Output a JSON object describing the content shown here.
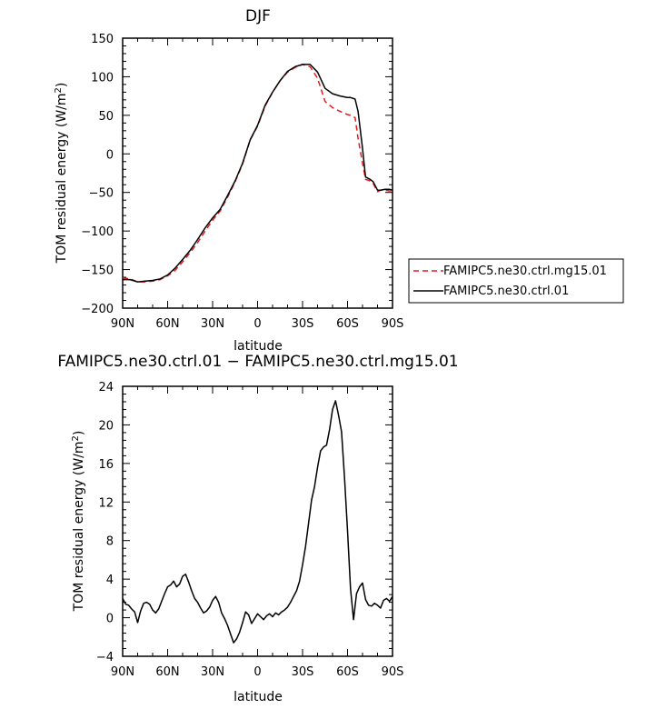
{
  "chart_data": [
    {
      "type": "line",
      "title": "DJF",
      "xlabel": "latitude",
      "ylabel": "TOM residual energy (W/m",
      "ylabel_sup": "2",
      "ylabel_close": ")",
      "xlim": [
        -90,
        90
      ],
      "ylim": [
        -200,
        150
      ],
      "x_ticks": [
        -90,
        -60,
        -30,
        0,
        30,
        60,
        90
      ],
      "x_tick_labels": [
        "90N",
        "60N",
        "30N",
        "0",
        "30S",
        "60S",
        "90S"
      ],
      "y_ticks": [
        -200,
        -150,
        -100,
        -50,
        0,
        50,
        100,
        150
      ],
      "y_tick_labels": [
        "−200",
        "−150",
        "−100",
        "−50",
        "0",
        "50",
        "100",
        "150"
      ],
      "grid": false,
      "legend_position": "right",
      "series": [
        {
          "name": "FAMIPC5.ne30.ctrl.mg15.01",
          "color": "#e8191e",
          "dash": "dashed",
          "x": [
            -90,
            -85,
            -80,
            -75,
            -70,
            -65,
            -60,
            -55,
            -50,
            -45,
            -40,
            -35,
            -30,
            -25,
            -20,
            -15,
            -10,
            -5,
            0,
            5,
            10,
            15,
            20,
            25,
            30,
            35,
            40,
            45,
            50,
            55,
            60,
            62,
            65,
            67,
            70,
            72,
            75,
            77,
            80,
            82,
            85,
            88,
            90
          ],
          "y": [
            -161,
            -162,
            -166,
            -166,
            -165,
            -163,
            -158,
            -151,
            -140,
            -128,
            -115,
            -100,
            -86,
            -74,
            -56,
            -36,
            -13,
            18,
            36,
            62,
            80,
            95,
            106,
            112,
            116,
            113,
            98,
            68,
            60,
            55,
            51,
            50,
            47,
            20,
            -12,
            -33,
            -35,
            -38,
            -49,
            -47,
            -47,
            -48,
            -48
          ]
        },
        {
          "name": "FAMIPC5.ne30.ctrl.01",
          "color": "#000000",
          "dash": "solid",
          "x": [
            -90,
            -85,
            -80,
            -75,
            -70,
            -65,
            -60,
            -55,
            -50,
            -45,
            -40,
            -35,
            -30,
            -25,
            -20,
            -15,
            -10,
            -5,
            0,
            5,
            10,
            15,
            20,
            25,
            30,
            35,
            40,
            45,
            50,
            55,
            60,
            62,
            65,
            67,
            70,
            72,
            75,
            77,
            80,
            82,
            85,
            88,
            90
          ],
          "y": [
            -163,
            -163,
            -166,
            -165,
            -164,
            -162,
            -157,
            -148,
            -137,
            -125,
            -111,
            -96,
            -83,
            -72,
            -54,
            -35,
            -12,
            18,
            37,
            63,
            80,
            95,
            107,
            113,
            116,
            116,
            106,
            85,
            78,
            75,
            73,
            73,
            71,
            55,
            7,
            -30,
            -33,
            -36,
            -47,
            -47,
            -46,
            -46,
            -47
          ]
        }
      ]
    },
    {
      "type": "line",
      "title": "FAMIPC5.ne30.ctrl.01 − FAMIPC5.ne30.ctrl.mg15.01",
      "xlabel": "latitude",
      "ylabel": "TOM residual energy (W/m",
      "ylabel_sup": "2",
      "ylabel_close": ")",
      "xlim": [
        -90,
        90
      ],
      "ylim": [
        -4,
        24
      ],
      "x_ticks": [
        -90,
        -60,
        -30,
        0,
        30,
        60,
        90
      ],
      "x_tick_labels": [
        "90N",
        "60N",
        "30N",
        "0",
        "30S",
        "60S",
        "90S"
      ],
      "y_ticks": [
        -4,
        0,
        4,
        8,
        12,
        16,
        20,
        24
      ],
      "y_tick_labels": [
        "−4",
        "0",
        "4",
        "8",
        "12",
        "16",
        "20",
        "24"
      ],
      "grid": false,
      "series": [
        {
          "color": "#000000",
          "dash": "solid",
          "x": [
            -90,
            -88,
            -86,
            -84,
            -82,
            -80,
            -78,
            -76,
            -74,
            -72,
            -70,
            -68,
            -66,
            -64,
            -62,
            -60,
            -58,
            -56,
            -54,
            -52,
            -50,
            -48,
            -46,
            -44,
            -42,
            -40,
            -38,
            -36,
            -34,
            -32,
            -30,
            -28,
            -26,
            -24,
            -22,
            -20,
            -18,
            -16,
            -14,
            -12,
            -10,
            -8,
            -6,
            -4,
            -2,
            0,
            2,
            4,
            6,
            8,
            10,
            12,
            14,
            16,
            18,
            20,
            22,
            24,
            26,
            28,
            30,
            32,
            34,
            36,
            38,
            40,
            42,
            44,
            46,
            48,
            50,
            52,
            54,
            56,
            58,
            60,
            62,
            64,
            66,
            68,
            70,
            72,
            74,
            76,
            78,
            80,
            82,
            84,
            86,
            88,
            90
          ],
          "y": [
            2.0,
            1.4,
            1.3,
            0.9,
            0.6,
            -0.5,
            0.7,
            1.5,
            1.6,
            1.4,
            0.8,
            0.5,
            0.9,
            1.7,
            2.5,
            3.2,
            3.4,
            3.8,
            3.2,
            3.5,
            4.3,
            4.5,
            3.7,
            2.8,
            2.0,
            1.6,
            1.0,
            0.5,
            0.7,
            1.1,
            1.8,
            2.2,
            1.6,
            0.5,
            -0.1,
            -0.8,
            -1.7,
            -2.6,
            -2.2,
            -1.5,
            -0.5,
            0.6,
            0.3,
            -0.6,
            -0.1,
            0.4,
            0.1,
            -0.2,
            0.2,
            0.4,
            0.1,
            0.5,
            0.3,
            0.6,
            0.8,
            1.1,
            1.6,
            2.2,
            2.8,
            3.8,
            5.5,
            7.4,
            9.8,
            12.2,
            13.6,
            15.6,
            17.3,
            17.7,
            17.9,
            19.5,
            21.6,
            22.5,
            21.0,
            19.3,
            14.5,
            9.0,
            3.0,
            -0.2,
            2.5,
            3.2,
            3.6,
            1.9,
            1.3,
            1.2,
            1.5,
            1.3,
            1.0,
            1.8,
            2.0,
            1.7,
            2.2
          ]
        }
      ]
    }
  ]
}
